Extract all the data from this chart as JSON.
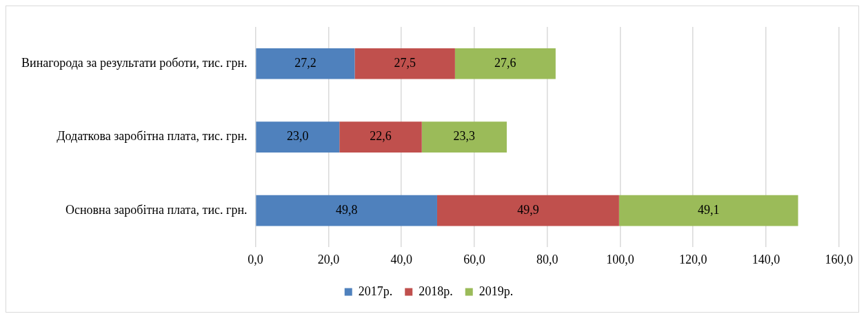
{
  "chart_data": {
    "type": "bar",
    "orientation": "horizontal",
    "stacked": true,
    "categories": [
      "Винагорода за результати роботи, тис. грн.",
      "Додаткова заробітна плата, тис. грн.",
      "Основна заробітна плата, тис. грн."
    ],
    "series": [
      {
        "name": "2017р.",
        "color": "#4f81bd",
        "values": [
          27.2,
          23.0,
          49.8
        ],
        "value_labels": [
          "27,2",
          "23,0",
          "49,8"
        ]
      },
      {
        "name": "2018р.",
        "color": "#c0504d",
        "values": [
          27.5,
          22.6,
          49.9
        ],
        "value_labels": [
          "27,5",
          "22,6",
          "49,9"
        ]
      },
      {
        "name": "2019р.",
        "color": "#9bbb59",
        "values": [
          27.6,
          23.3,
          49.1
        ],
        "value_labels": [
          "27,6",
          "23,3",
          "49,1"
        ]
      }
    ],
    "xlim": [
      0,
      160
    ],
    "xticks": [
      {
        "value": 0,
        "label": "0,0"
      },
      {
        "value": 20,
        "label": "20,0"
      },
      {
        "value": 40,
        "label": "40,0"
      },
      {
        "value": 60,
        "label": "60,0"
      },
      {
        "value": 80,
        "label": "80,0"
      },
      {
        "value": 100,
        "label": "100,0"
      },
      {
        "value": 120,
        "label": "120,0"
      },
      {
        "value": 140,
        "label": "140,0"
      },
      {
        "value": 160,
        "label": "160,0"
      }
    ],
    "grid": "x",
    "legend": "bottom"
  }
}
